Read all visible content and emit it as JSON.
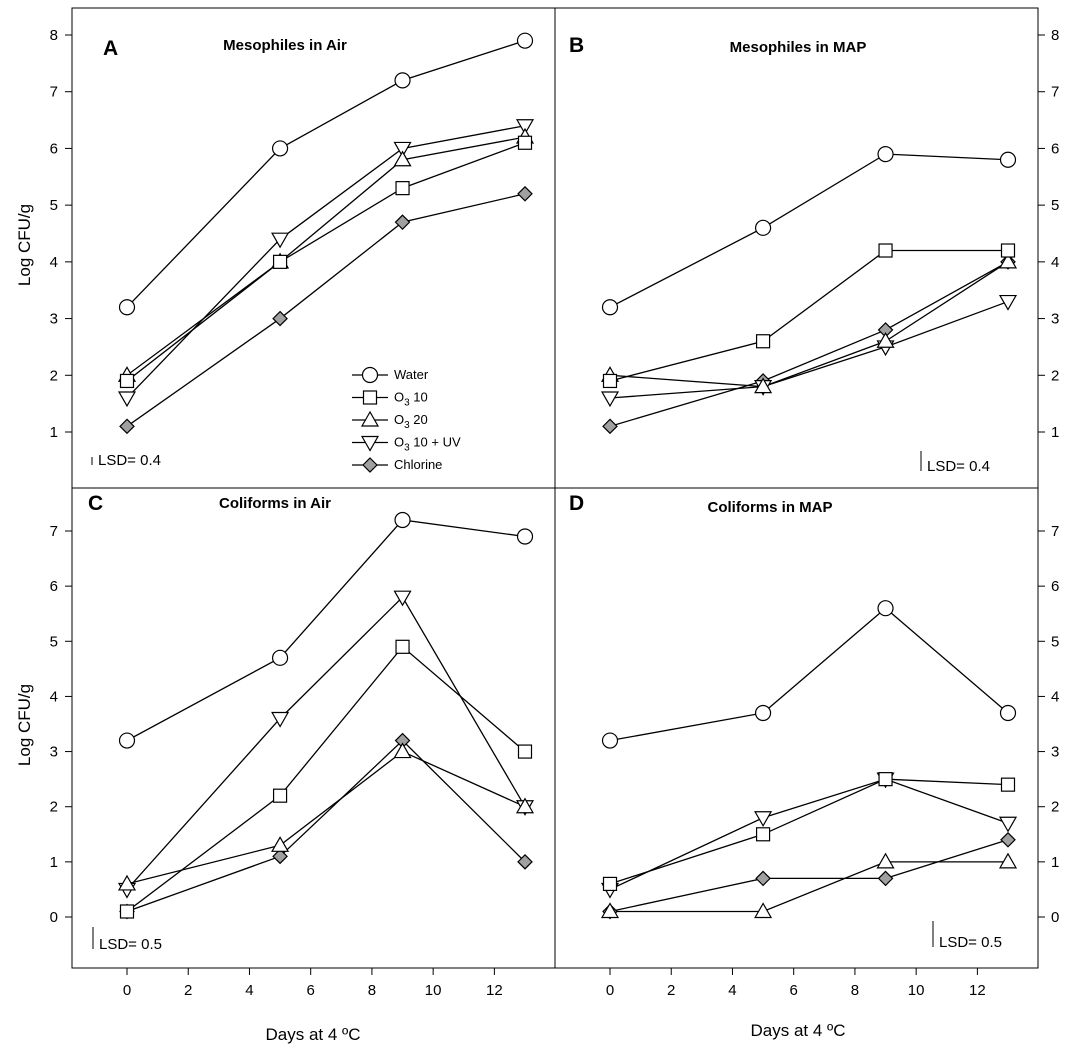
{
  "figure": {
    "ylabel": "Log CFU/g",
    "xlabel": "Days at 4 ºC",
    "legend_location": "inside-panel-A-lower-right"
  },
  "colors": {
    "open_fill": "#ffffff",
    "chlorine_fill": "#a0a0a0",
    "line": "#000000"
  },
  "chart_data": [
    {
      "type": "line",
      "letter": "A",
      "title": "Mesophiles in Air",
      "lsd": "LSD= 0.4",
      "xlabel": "",
      "ylabel": "Log CFU/g",
      "xlim": [
        -1.5,
        14.2
      ],
      "ylim": [
        0.2,
        8.5
      ],
      "xticks": [
        0,
        2,
        4,
        6,
        8,
        10,
        12
      ],
      "yticks": [
        1,
        2,
        3,
        4,
        5,
        6,
        7,
        8
      ],
      "x": [
        0,
        5,
        9,
        13
      ],
      "series": [
        {
          "name": "Water",
          "marker": "circle",
          "values": [
            3.2,
            6.0,
            7.2,
            7.9
          ]
        },
        {
          "name": "O3 10",
          "marker": "square",
          "values": [
            1.9,
            4.0,
            5.3,
            6.1
          ]
        },
        {
          "name": "O3 20",
          "marker": "triangle-up",
          "values": [
            2.0,
            4.0,
            5.8,
            6.2
          ]
        },
        {
          "name": "O3 10 + UV",
          "marker": "triangle-down",
          "values": [
            1.6,
            4.4,
            6.0,
            6.4
          ]
        },
        {
          "name": "Chlorine",
          "marker": "diamond",
          "values": [
            1.1,
            3.0,
            4.7,
            5.2
          ]
        }
      ]
    },
    {
      "type": "line",
      "letter": "B",
      "title": "Mesophiles in MAP",
      "lsd": "LSD= 0.4",
      "xlabel": "",
      "ylabel": "",
      "xlim": [
        -1.5,
        14.2
      ],
      "ylim": [
        0.2,
        8.5
      ],
      "xticks": [
        0,
        2,
        4,
        6,
        8,
        10,
        12
      ],
      "yticks": [
        1,
        2,
        3,
        4,
        5,
        6,
        7,
        8
      ],
      "x": [
        0,
        5,
        9,
        13
      ],
      "series": [
        {
          "name": "Water",
          "marker": "circle",
          "values": [
            3.2,
            4.6,
            5.9,
            5.8
          ]
        },
        {
          "name": "O3 10",
          "marker": "square",
          "values": [
            1.9,
            2.6,
            4.2,
            4.2
          ]
        },
        {
          "name": "O3 20",
          "marker": "triangle-up",
          "values": [
            2.0,
            1.8,
            2.6,
            4.0
          ]
        },
        {
          "name": "O3 10 + UV",
          "marker": "triangle-down",
          "values": [
            1.6,
            1.8,
            2.5,
            3.3
          ]
        },
        {
          "name": "Chlorine",
          "marker": "diamond",
          "values": [
            1.1,
            1.9,
            2.8,
            4.0
          ]
        }
      ]
    },
    {
      "type": "line",
      "letter": "C",
      "title": "Coliforms in Air",
      "lsd": "LSD= 0.5",
      "xlabel": "Days at 4 ºC",
      "ylabel": "Log CFU/g",
      "xlim": [
        -1.5,
        14.2
      ],
      "ylim": [
        -0.55,
        7.9
      ],
      "xticks": [
        0,
        2,
        4,
        6,
        8,
        10,
        12
      ],
      "yticks": [
        0,
        1,
        2,
        3,
        4,
        5,
        6,
        7
      ],
      "x": [
        0,
        5,
        9,
        13
      ],
      "series": [
        {
          "name": "Water",
          "marker": "circle",
          "values": [
            3.2,
            4.7,
            7.2,
            6.9
          ]
        },
        {
          "name": "O3 10",
          "marker": "square",
          "values": [
            0.1,
            2.2,
            4.9,
            3.0
          ]
        },
        {
          "name": "O3 20",
          "marker": "triangle-up",
          "values": [
            0.6,
            1.3,
            3.0,
            2.0
          ]
        },
        {
          "name": "O3 10 + UV",
          "marker": "triangle-down",
          "values": [
            0.5,
            3.6,
            5.8,
            2.0
          ]
        },
        {
          "name": "Chlorine",
          "marker": "diamond",
          "values": [
            0.1,
            1.1,
            3.2,
            1.0
          ]
        }
      ]
    },
    {
      "type": "line",
      "letter": "D",
      "title": "Coliforms in MAP",
      "lsd": "LSD= 0.5",
      "xlabel": "Days at 4 ºC",
      "ylabel": "",
      "xlim": [
        -1.5,
        14.2
      ],
      "ylim": [
        -0.55,
        7.9
      ],
      "xticks": [
        0,
        2,
        4,
        6,
        8,
        10,
        12
      ],
      "yticks": [
        0,
        1,
        2,
        3,
        4,
        5,
        6,
        7
      ],
      "x": [
        0,
        5,
        9,
        13
      ],
      "series": [
        {
          "name": "Water",
          "marker": "circle",
          "values": [
            3.2,
            3.7,
            5.6,
            3.7
          ]
        },
        {
          "name": "O3 10",
          "marker": "square",
          "values": [
            0.6,
            1.5,
            2.5,
            2.4
          ]
        },
        {
          "name": "O3 20",
          "marker": "triangle-up",
          "values": [
            0.1,
            0.1,
            1.0,
            1.0
          ]
        },
        {
          "name": "O3 10 + UV",
          "marker": "triangle-down",
          "values": [
            0.5,
            1.8,
            2.5,
            1.7
          ]
        },
        {
          "name": "Chlorine",
          "marker": "diamond",
          "values": [
            0.1,
            0.7,
            0.7,
            1.4
          ]
        }
      ]
    }
  ],
  "legend": [
    {
      "marker": "circle",
      "label": "Water",
      "sub": "",
      "suffix": ""
    },
    {
      "marker": "square",
      "label": "O",
      "sub": "3",
      "suffix": " 10"
    },
    {
      "marker": "triangle-up",
      "label": "O",
      "sub": "3",
      "suffix": " 20"
    },
    {
      "marker": "triangle-down",
      "label": "O",
      "sub": "3",
      "suffix": " 10 + UV"
    },
    {
      "marker": "diamond",
      "label": "Chlorine",
      "sub": "",
      "suffix": ""
    }
  ]
}
